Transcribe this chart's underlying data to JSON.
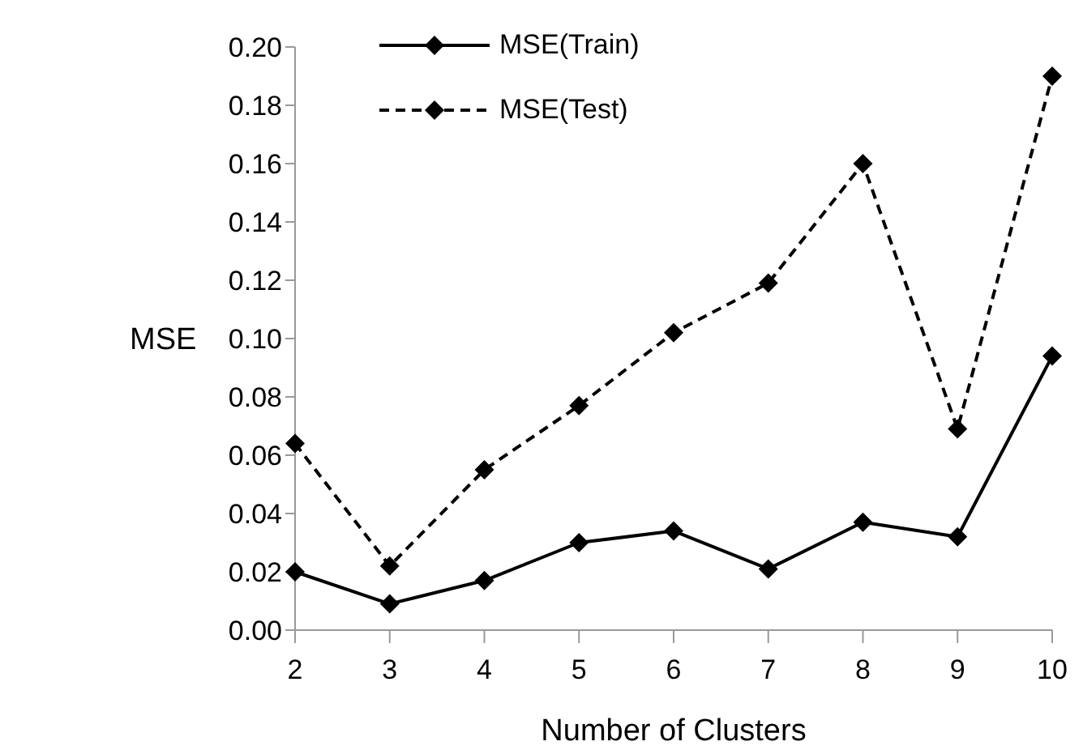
{
  "chart_data": {
    "type": "line",
    "xlabel": "Number of Clusters",
    "ylabel": "MSE",
    "categories": [
      "2",
      "3",
      "4",
      "5",
      "6",
      "7",
      "8",
      "9",
      "10"
    ],
    "series": [
      {
        "name": "MSE(Train)",
        "color": "#000000",
        "line_style": "solid",
        "values": [
          0.02,
          0.009,
          0.017,
          0.03,
          0.034,
          0.021,
          0.037,
          0.032,
          0.094
        ]
      },
      {
        "name": "MSE(Test)",
        "color": "#000000",
        "line_style": "dashed",
        "values": [
          0.064,
          0.022,
          0.055,
          0.077,
          0.102,
          0.119,
          0.16,
          0.069,
          0.19
        ]
      }
    ],
    "ylim": [
      0,
      0.2
    ],
    "yticks": [
      {
        "value": 0,
        "label": "0.00"
      },
      0.02,
      0.04,
      0.06,
      0.08,
      {
        "value": 0.1,
        "label": "0.10"
      },
      0.12,
      0.14,
      0.16,
      0.18,
      {
        "value": 0.2,
        "label": "0.20"
      }
    ],
    "grid": false,
    "legend": "top left",
    "marker": "diamond"
  }
}
